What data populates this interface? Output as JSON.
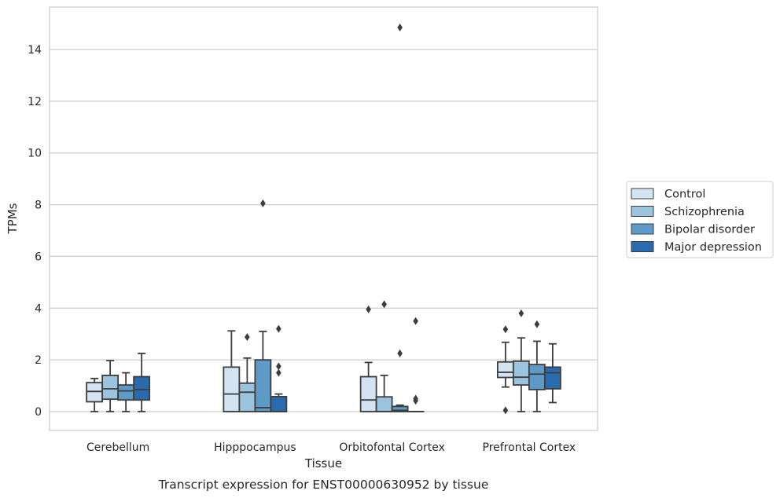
{
  "chart_data": {
    "type": "box",
    "title": "",
    "caption": "Transcript expression for ENST00000630952 by tissue",
    "xlabel": "Tissue",
    "ylabel": "TPMs",
    "ylim": [
      -0.7,
      15.6
    ],
    "yticks": [
      0,
      2,
      4,
      6,
      8,
      10,
      12,
      14
    ],
    "grid": "horizontal",
    "legend_position": "right",
    "categories": [
      "Cerebellum",
      "Hipppocampus",
      "Orbitofontal Cortex",
      "Prefrontal Cortex"
    ],
    "series": [
      {
        "name": "Control",
        "color": "#d3e3f2",
        "boxes": [
          {
            "min": 0.0,
            "q1": 0.38,
            "median": 0.78,
            "q3": 1.12,
            "max": 1.28,
            "outliers": []
          },
          {
            "min": 0.0,
            "q1": 0.0,
            "median": 0.68,
            "q3": 1.72,
            "max": 3.12,
            "outliers": []
          },
          {
            "min": 0.0,
            "q1": 0.0,
            "median": 0.45,
            "q3": 1.35,
            "max": 1.9,
            "outliers": [
              3.95
            ]
          },
          {
            "min": 0.95,
            "q1": 1.32,
            "median": 1.52,
            "q3": 1.92,
            "max": 2.68,
            "outliers": [
              3.18,
              0.05
            ]
          }
        ]
      },
      {
        "name": "Schizophrenia",
        "color": "#9cc4de",
        "boxes": [
          {
            "min": 0.0,
            "q1": 0.48,
            "median": 0.88,
            "q3": 1.4,
            "max": 1.97,
            "outliers": []
          },
          {
            "min": 0.0,
            "q1": 0.0,
            "median": 0.75,
            "q3": 1.1,
            "max": 2.07,
            "outliers": [
              2.88
            ]
          },
          {
            "min": 0.0,
            "q1": 0.0,
            "median": 0.0,
            "q3": 0.57,
            "max": 1.4,
            "outliers": [
              4.15
            ]
          },
          {
            "min": 0.0,
            "q1": 1.03,
            "median": 1.33,
            "q3": 1.95,
            "max": 2.85,
            "outliers": [
              3.8
            ]
          }
        ]
      },
      {
        "name": "Bipolar disorder",
        "color": "#5d9ac8",
        "boxes": [
          {
            "min": 0.0,
            "q1": 0.45,
            "median": 0.8,
            "q3": 1.03,
            "max": 1.5,
            "outliers": []
          },
          {
            "min": 0.0,
            "q1": 0.0,
            "median": 0.15,
            "q3": 2.0,
            "max": 3.1,
            "outliers": [
              8.05
            ]
          },
          {
            "min": 0.0,
            "q1": 0.0,
            "median": 0.05,
            "q3": 0.2,
            "max": 0.25,
            "outliers": [
              14.85,
              2.25
            ]
          },
          {
            "min": 0.0,
            "q1": 0.85,
            "median": 1.45,
            "q3": 1.82,
            "max": 2.72,
            "outliers": [
              3.38
            ]
          }
        ]
      },
      {
        "name": "Major depression",
        "color": "#2a6bad",
        "boxes": [
          {
            "min": 0.0,
            "q1": 0.45,
            "median": 0.85,
            "q3": 1.35,
            "max": 2.25,
            "outliers": []
          },
          {
            "min": 0.0,
            "q1": 0.0,
            "median": 0.0,
            "q3": 0.58,
            "max": 0.68,
            "outliers": [
              3.2,
              1.75,
              1.5
            ]
          },
          {
            "min": 0.0,
            "q1": 0.0,
            "median": 0.0,
            "q3": 0.0,
            "max": 0.0,
            "outliers": [
              3.5,
              0.5,
              0.42
            ]
          },
          {
            "min": 0.35,
            "q1": 0.88,
            "median": 1.5,
            "q3": 1.72,
            "max": 2.62,
            "outliers": []
          }
        ]
      }
    ]
  }
}
